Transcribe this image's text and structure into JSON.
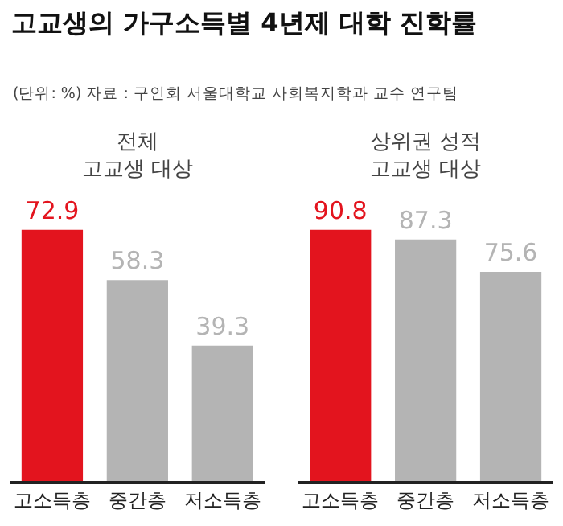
{
  "chart_data": [
    {
      "type": "bar",
      "title": "고교생의 가구소득별 4년제 대학 진학률",
      "subtitle": "(단위: %) 자료 : 구인회 서울대학교 사회복지학과 교수 연구팀",
      "annotations": [
        "전체\n고교생 대상"
      ],
      "categories": [
        "고소득층",
        "중간층",
        "저소득층"
      ],
      "values": [
        72.9,
        58.3,
        39.3
      ],
      "colors": [
        "#e3141e",
        "#b4b4b4",
        "#b4b4b4"
      ],
      "data_labels": true
    },
    {
      "type": "bar",
      "annotations": [
        "상위권 성적\n고교생 대상"
      ],
      "categories": [
        "고소득층",
        "중간층",
        "저소득층"
      ],
      "values": [
        90.8,
        87.3,
        75.6
      ],
      "colors": [
        "#e3141e",
        "#b4b4b4",
        "#b4b4b4"
      ],
      "data_labels": true
    }
  ]
}
